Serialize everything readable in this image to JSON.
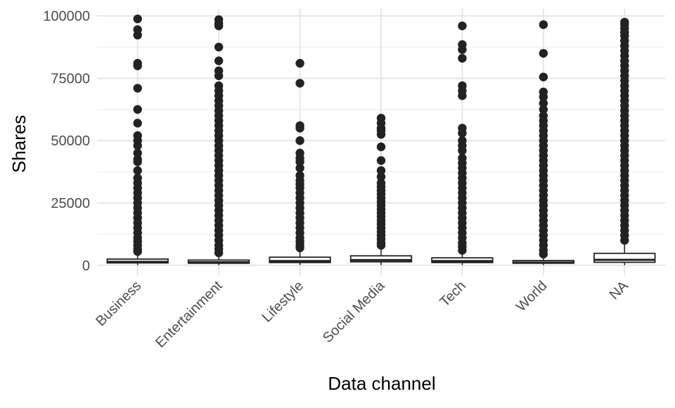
{
  "chart_data": {
    "type": "box",
    "xlabel": "Data channel",
    "ylabel": "Shares",
    "ylim": [
      -4000,
      103000
    ],
    "yticks": [
      0,
      25000,
      50000,
      75000,
      100000
    ],
    "ytick_labels": [
      "0",
      "25000",
      "50000",
      "75000",
      "100000"
    ],
    "grid": "major and minor, light gray",
    "legend": "none",
    "colors": {
      "box_fill": "#ffffff",
      "box_stroke": "#222222",
      "point": "#222222"
    },
    "categories": [
      "Business",
      "Entertainment",
      "Lifestyle",
      "Social Media",
      "Tech",
      "World",
      "NA"
    ],
    "series": [
      {
        "category": "Business",
        "q1": 950,
        "median": 1400,
        "q3": 2500,
        "whisker_low": 100,
        "whisker_high": 5000,
        "outliers": [
          98800,
          94500,
          92300,
          81000,
          80000,
          71000,
          62500,
          57000,
          52000,
          50000,
          48000,
          45000,
          42500,
          41500,
          38000,
          35000,
          33000,
          31000,
          29000,
          27000,
          25000,
          23000,
          21000,
          19000,
          17000,
          15000,
          13000,
          11000,
          9500,
          8000,
          6500,
          5500
        ]
      },
      {
        "category": "Entertainment",
        "q1": 830,
        "median": 1200,
        "q3": 2100,
        "whisker_low": 50,
        "whisker_high": 4500,
        "outliers": [
          98500,
          97000,
          96000,
          87500,
          82000,
          78000,
          76000,
          72000,
          70000,
          68000,
          66000,
          64000,
          62000,
          60000,
          58000,
          56000,
          54000,
          52000,
          50000,
          48000,
          46000,
          44000,
          42000,
          40000,
          38000,
          36000,
          34000,
          32000,
          30000,
          28000,
          26000,
          24000,
          22000,
          20000,
          18000,
          16000,
          14000,
          12000,
          10000,
          8000,
          6500,
          5000
        ]
      },
      {
        "category": "Lifestyle",
        "q1": 1100,
        "median": 1700,
        "q3": 3250,
        "whisker_low": 100,
        "whisker_high": 6500,
        "outliers": [
          81000,
          73000,
          56000,
          55000,
          50000,
          45000,
          43000,
          41500,
          39000,
          36000,
          34000,
          32500,
          31000,
          29000,
          27000,
          25000,
          23000,
          21000,
          19000,
          17000,
          15000,
          13000,
          11000,
          9500,
          8000,
          7000
        ]
      },
      {
        "category": "Social Media",
        "q1": 1400,
        "median": 2100,
        "q3": 3800,
        "whisker_low": 100,
        "whisker_high": 7500,
        "outliers": [
          59000,
          57000,
          55000,
          54000,
          52500,
          47500,
          42000,
          38000,
          35500,
          33000,
          31500,
          30000,
          28500,
          27000,
          25500,
          24000,
          22500,
          21000,
          19500,
          18000,
          16500,
          15000,
          13500,
          12000,
          10500,
          9000,
          8000
        ]
      },
      {
        "category": "Tech",
        "q1": 1100,
        "median": 1700,
        "q3": 3000,
        "whisker_low": 50,
        "whisker_high": 5800,
        "outliers": [
          96000,
          88500,
          86500,
          83000,
          72000,
          70000,
          68000,
          55000,
          53000,
          50000,
          48000,
          46000,
          43000,
          41000,
          39000,
          37000,
          35000,
          33000,
          31000,
          29000,
          27000,
          25000,
          23000,
          21000,
          19000,
          17000,
          15000,
          13000,
          11000,
          9000,
          7500,
          6000
        ]
      },
      {
        "category": "World",
        "q1": 830,
        "median": 1100,
        "q3": 1900,
        "whisker_low": 30,
        "whisker_high": 3500,
        "outliers": [
          96500,
          85000,
          75500,
          69500,
          67500,
          65000,
          62500,
          60000,
          58000,
          56000,
          54000,
          52000,
          50000,
          48000,
          46000,
          44000,
          42000,
          40000,
          38000,
          36000,
          34000,
          32000,
          30000,
          28000,
          26000,
          24000,
          22000,
          20000,
          18000,
          16000,
          14000,
          12000,
          10000,
          8000,
          6000,
          4500
        ]
      },
      {
        "category": "NA",
        "q1": 1200,
        "median": 2200,
        "q3": 4800,
        "whisker_low": 30,
        "whisker_high": 9500,
        "outliers": [
          97500,
          96500,
          95000,
          93500,
          92000,
          90000,
          88000,
          86000,
          84000,
          82000,
          80000,
          78000,
          76000,
          74000,
          72000,
          70000,
          68000,
          66000,
          64000,
          62000,
          60000,
          58000,
          56000,
          54000,
          52000,
          50000,
          48000,
          46000,
          44000,
          42000,
          40000,
          38000,
          36000,
          34000,
          32000,
          30000,
          28000,
          26000,
          24000,
          22000,
          20000,
          18000,
          16000,
          14000,
          12000,
          10000
        ]
      }
    ]
  }
}
